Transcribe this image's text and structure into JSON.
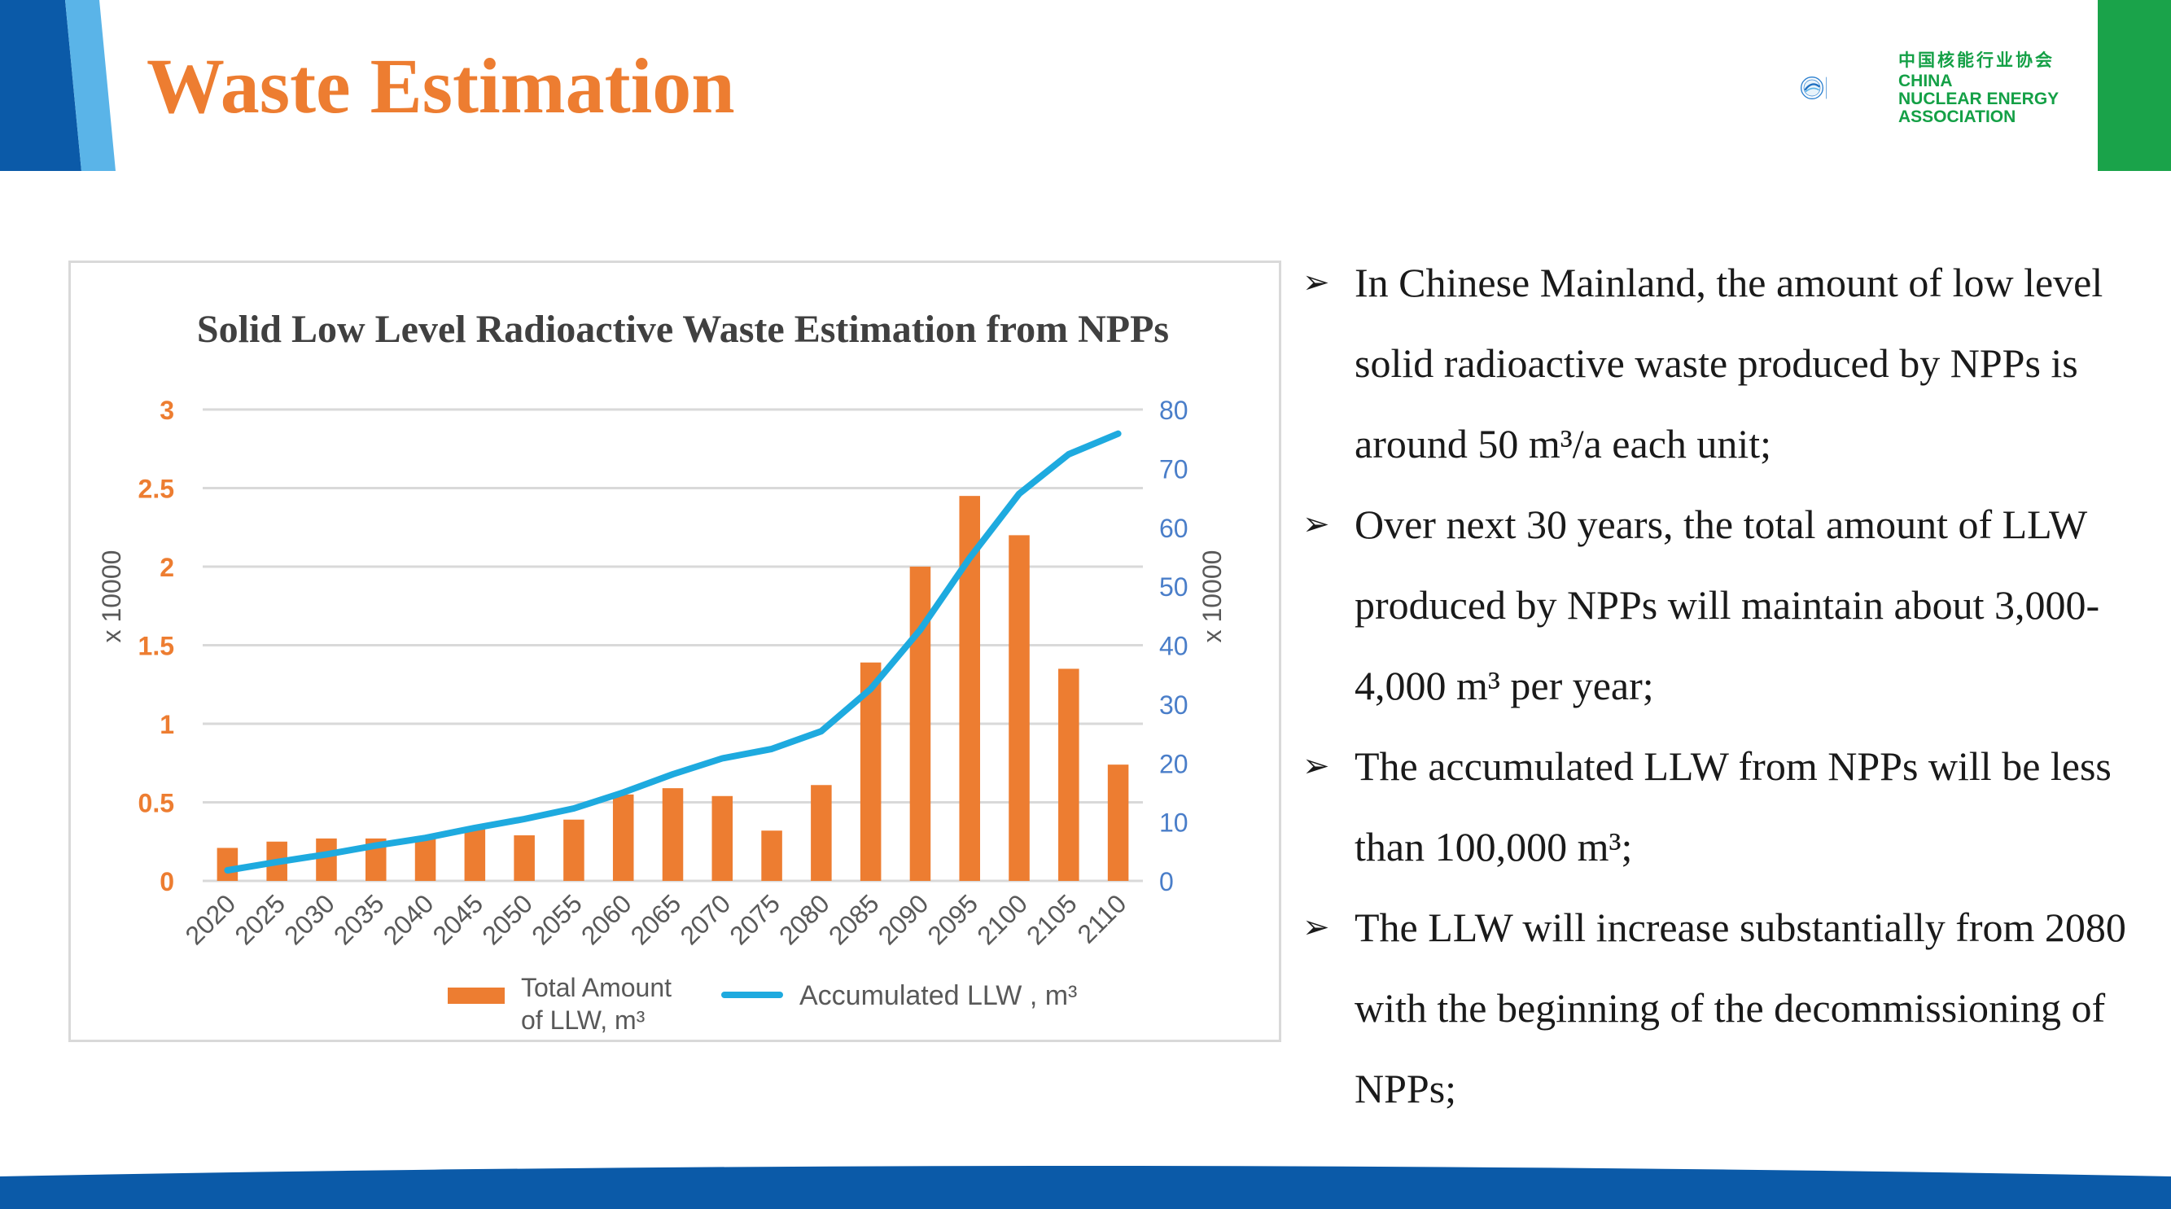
{
  "slide": {
    "title": "Waste Estimation",
    "colors": {
      "accent_orange": "#ed7d31",
      "line_blue": "#1eaadf",
      "band_blue": "#0b5aa8",
      "band_green": "#1aa34a"
    }
  },
  "logo": {
    "icon": "cnea-globe-icon",
    "cn_text": "中国核能行业协会",
    "en_line1": "CHINA",
    "en_line2": "NUCLEAR ENERGY",
    "en_line3": "ASSOCIATION"
  },
  "chart_data": {
    "type": "bar+line",
    "title": "Solid Low Level Radioactive Waste Estimation from NPPs",
    "categories": [
      "2020",
      "2025",
      "2030",
      "2035",
      "2040",
      "2045",
      "2050",
      "2055",
      "2060",
      "2065",
      "2070",
      "2075",
      "2080",
      "2085",
      "2090",
      "2095",
      "2100",
      "2105",
      "2110"
    ],
    "series": [
      {
        "name": "Total Amount of LLW, m³",
        "legend_line1": "Total Amount",
        "legend_line2": "of LLW, m³",
        "kind": "bar",
        "axis": "left",
        "color": "#ed7d31",
        "values": [
          0.21,
          0.25,
          0.27,
          0.27,
          0.28,
          0.33,
          0.29,
          0.39,
          0.55,
          0.59,
          0.54,
          0.32,
          0.61,
          1.39,
          2.0,
          2.45,
          2.2,
          1.35,
          0.74
        ]
      },
      {
        "name": "Accumulated LLW , m³",
        "legend_label": "Accumulated LLW , m³",
        "kind": "line",
        "axis": "right",
        "color": "#1eaadf",
        "values": [
          1.8,
          3.2,
          4.5,
          6.0,
          7.3,
          9.0,
          10.5,
          12.3,
          15.0,
          18.1,
          20.8,
          22.4,
          25.4,
          32.6,
          42.6,
          54.8,
          65.7,
          72.4,
          75.9
        ]
      }
    ],
    "left_axis": {
      "label": "x 10000",
      "min": 0,
      "max": 3,
      "ticks": [
        "0",
        "0.5",
        "1",
        "1.5",
        "2",
        "2.5",
        "3"
      ],
      "tick_values": [
        0,
        0.5,
        1,
        1.5,
        2,
        2.5,
        3
      ],
      "color": "#ed7d31"
    },
    "right_axis": {
      "label": "x 10000",
      "min": 0,
      "max": 80,
      "ticks": [
        "0",
        "10",
        "20",
        "30",
        "40",
        "50",
        "60",
        "70",
        "80"
      ],
      "tick_values": [
        0,
        10,
        20,
        30,
        40,
        50,
        60,
        70,
        80
      ],
      "color": "#4a7ec9"
    },
    "grid": true,
    "legend_position": "bottom"
  },
  "bullets": [
    {
      "icon": "arrow-bullet-icon",
      "glyph": "➢",
      "text": "In Chinese Mainland, the amount of low level  solid radioactive waste produced by NPPs is around 50 m³/a each unit;"
    },
    {
      "icon": "arrow-bullet-icon",
      "glyph": "➢",
      "text": "Over next 30 years, the total amount of LLW produced by NPPs will maintain about 3,000-4,000 m³ per year;"
    },
    {
      "icon": "arrow-bullet-icon",
      "glyph": "➢",
      "text": "The accumulated LLW from NPPs will be less than 100,000 m³;"
    },
    {
      "icon": "arrow-bullet-icon",
      "glyph": "➢",
      "text": "The LLW will increase substantially from 2080 with the beginning of the decommissioning of NPPs;"
    }
  ]
}
